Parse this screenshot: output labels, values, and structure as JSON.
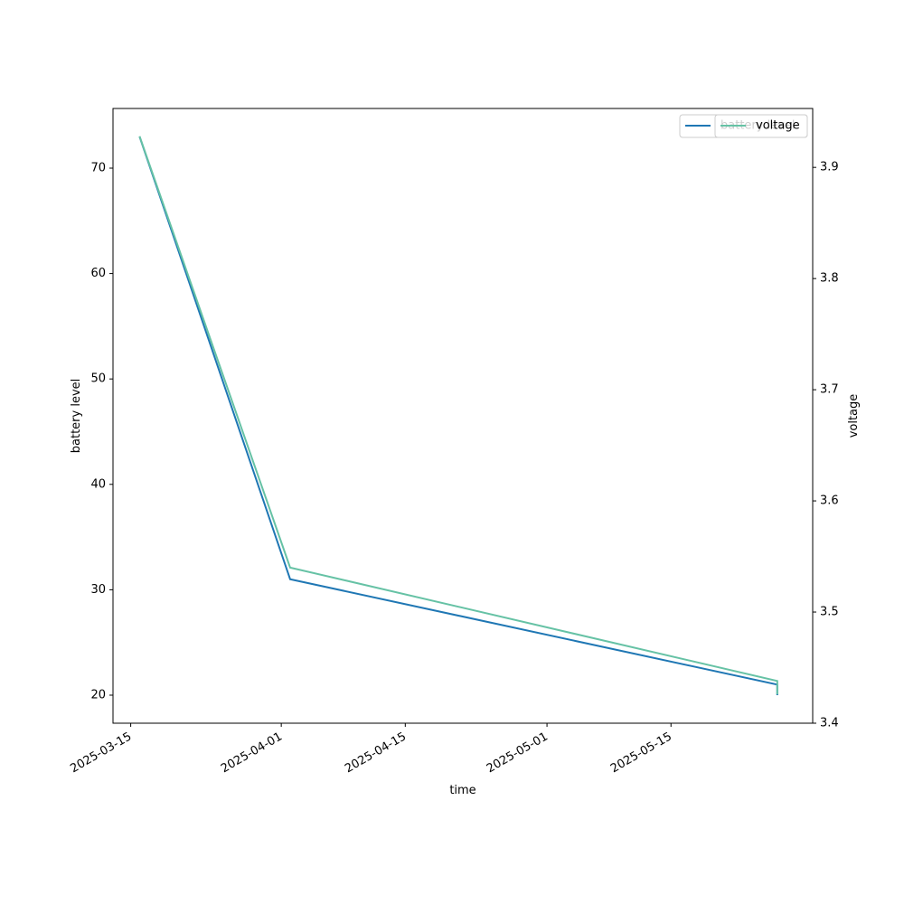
{
  "chart_data": {
    "type": "line",
    "x": [
      "2025-03-16",
      "2025-04-02",
      "2025-05-27",
      "2025-05-27"
    ],
    "series": [
      {
        "name": "battery level",
        "color": "#1f77b4",
        "values": [
          73,
          31,
          21,
          20
        ]
      },
      {
        "name": "voltage",
        "color": "#66c2a5",
        "values": [
          3.928,
          3.54,
          3.438,
          3.426
        ],
        "axis": "y2"
      }
    ],
    "xlabel": "time",
    "ylabel": "battery level",
    "y2label": "voltage",
    "xlim": [
      "2025-03-13",
      "2025-05-31"
    ],
    "xticks": [
      "2025-03-15",
      "2025-04-01",
      "2025-04-15",
      "2025-05-01",
      "2025-05-15"
    ],
    "ylim": [
      17.34,
      75.66
    ],
    "yticks": [
      20,
      30,
      40,
      50,
      60,
      70
    ],
    "y2lim": [
      3.4,
      3.953
    ],
    "y2ticks": [
      3.4,
      3.5,
      3.6,
      3.7,
      3.8,
      3.9
    ],
    "grid": false,
    "legend": "upper right"
  }
}
